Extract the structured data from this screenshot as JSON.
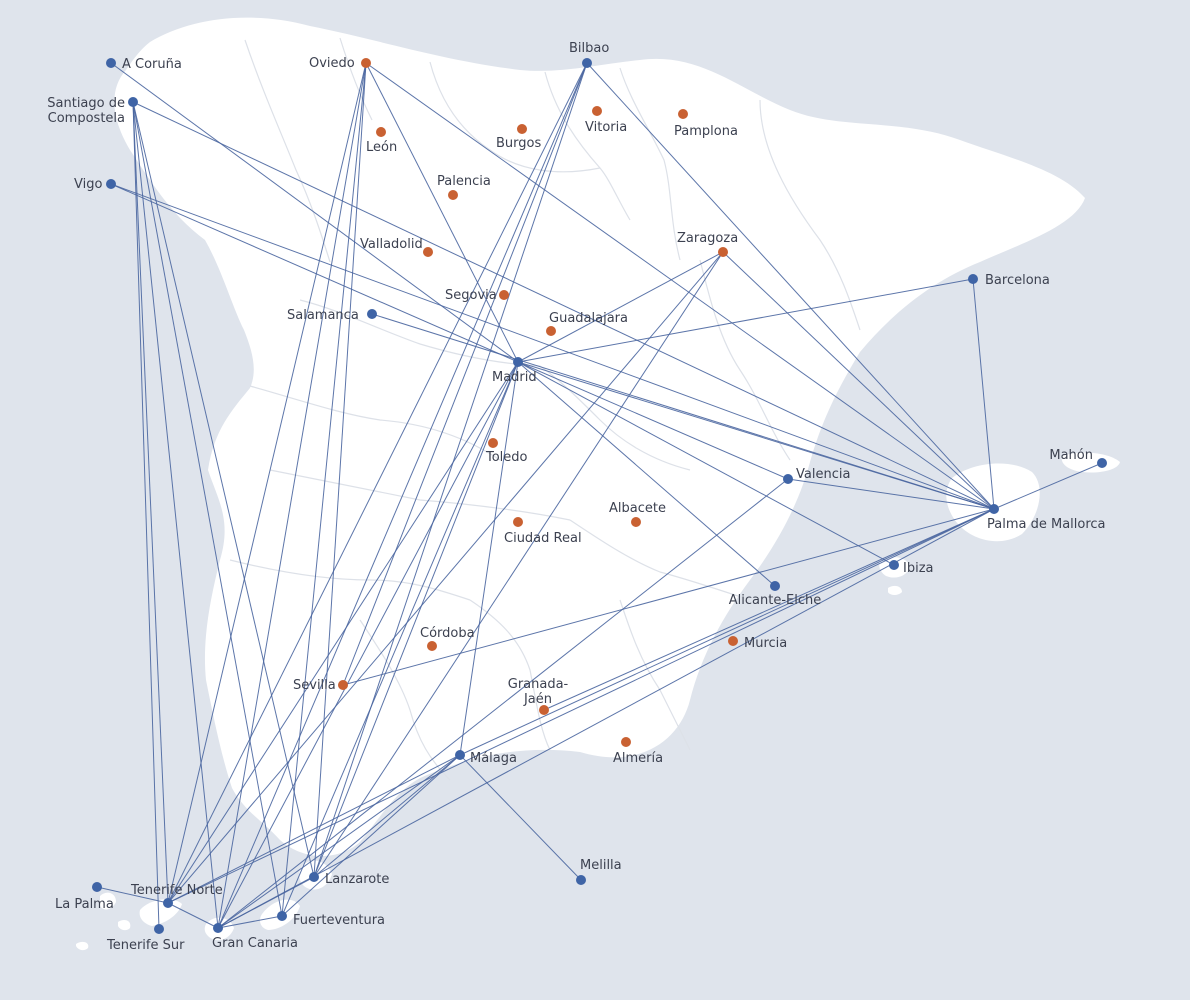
{
  "map": {
    "colors": {
      "sea": "#dfe4ec",
      "land": "#ffffff",
      "connected": "#3f64a6",
      "unconnected": "#c96132",
      "route": "#4a66a0",
      "label": "#3c4150",
      "border": "#dde1e8"
    },
    "cities": [
      {
        "id": "a-coruna",
        "name": "A Coruña",
        "type": "connected"
      },
      {
        "id": "santiago",
        "name": "Santiago de\nCompostela",
        "type": "connected"
      },
      {
        "id": "vigo",
        "name": "Vigo",
        "type": "connected"
      },
      {
        "id": "oviedo",
        "name": "Oviedo",
        "type": "unconnected"
      },
      {
        "id": "leon",
        "name": "León",
        "type": "unconnected"
      },
      {
        "id": "bilbao",
        "name": "Bilbao",
        "type": "connected"
      },
      {
        "id": "burgos",
        "name": "Burgos",
        "type": "unconnected"
      },
      {
        "id": "vitoria",
        "name": "Vitoria",
        "type": "unconnected"
      },
      {
        "id": "pamplona",
        "name": "Pamplona",
        "type": "unconnected"
      },
      {
        "id": "palencia",
        "name": "Palencia",
        "type": "unconnected"
      },
      {
        "id": "valladolid",
        "name": "Valladolid",
        "type": "unconnected"
      },
      {
        "id": "zaragoza",
        "name": "Zaragoza",
        "type": "unconnected"
      },
      {
        "id": "barcelona",
        "name": "Barcelona",
        "type": "connected"
      },
      {
        "id": "segovia",
        "name": "Segovia",
        "type": "unconnected"
      },
      {
        "id": "salamanca",
        "name": "Salamanca",
        "type": "connected"
      },
      {
        "id": "guadalajara",
        "name": "Guadalajara",
        "type": "unconnected"
      },
      {
        "id": "madrid",
        "name": "Madrid",
        "type": "connected"
      },
      {
        "id": "toledo",
        "name": "Toledo",
        "type": "unconnected"
      },
      {
        "id": "valencia",
        "name": "Valencia",
        "type": "connected"
      },
      {
        "id": "mahon",
        "name": "Mahón",
        "type": "connected"
      },
      {
        "id": "palma",
        "name": "Palma de Mallorca",
        "type": "connected"
      },
      {
        "id": "ciudad-real",
        "name": "Ciudad Real",
        "type": "unconnected"
      },
      {
        "id": "albacete",
        "name": "Albacete",
        "type": "unconnected"
      },
      {
        "id": "ibiza",
        "name": "Ibiza",
        "type": "connected"
      },
      {
        "id": "alicante",
        "name": "Alicante-Elche",
        "type": "connected"
      },
      {
        "id": "murcia",
        "name": "Murcia",
        "type": "unconnected"
      },
      {
        "id": "cordoba",
        "name": "Córdoba",
        "type": "unconnected"
      },
      {
        "id": "sevilla",
        "name": "Sevilla",
        "type": "unconnected"
      },
      {
        "id": "granada",
        "name": "Granada-\nJaén",
        "type": "unconnected"
      },
      {
        "id": "almeria",
        "name": "Almería",
        "type": "unconnected"
      },
      {
        "id": "malaga",
        "name": "Málaga",
        "type": "connected"
      },
      {
        "id": "melilla",
        "name": "Melilla",
        "type": "connected"
      },
      {
        "id": "lanzarote",
        "name": "Lanzarote",
        "type": "connected"
      },
      {
        "id": "tenerife-norte",
        "name": "Tenerife Norte",
        "type": "connected"
      },
      {
        "id": "la-palma",
        "name": "La Palma",
        "type": "connected"
      },
      {
        "id": "fuerteventura",
        "name": "Fuerteventura",
        "type": "connected"
      },
      {
        "id": "tenerife-sur",
        "name": "Tenerife Sur",
        "type": "connected"
      },
      {
        "id": "gran-canaria",
        "name": "Gran Canaria",
        "type": "connected"
      }
    ],
    "routes": [
      [
        "a-coruna",
        "madrid"
      ],
      [
        "santiago",
        "palma"
      ],
      [
        "santiago",
        "tenerife-norte"
      ],
      [
        "santiago",
        "gran-canaria"
      ],
      [
        "santiago",
        "lanzarote"
      ],
      [
        "santiago",
        "fuerteventura"
      ],
      [
        "santiago",
        "tenerife-sur"
      ],
      [
        "vigo",
        "madrid"
      ],
      [
        "vigo",
        "palma"
      ],
      [
        "oviedo",
        "madrid"
      ],
      [
        "oviedo",
        "palma"
      ],
      [
        "oviedo",
        "tenerife-norte"
      ],
      [
        "oviedo",
        "gran-canaria"
      ],
      [
        "oviedo",
        "lanzarote"
      ],
      [
        "oviedo",
        "fuerteventura"
      ],
      [
        "bilbao",
        "palma"
      ],
      [
        "bilbao",
        "tenerife-norte"
      ],
      [
        "bilbao",
        "gran-canaria"
      ],
      [
        "bilbao",
        "lanzarote"
      ],
      [
        "bilbao",
        "sevilla"
      ],
      [
        "zaragoza",
        "madrid"
      ],
      [
        "zaragoza",
        "tenerife-norte"
      ],
      [
        "zaragoza",
        "lanzarote"
      ],
      [
        "zaragoza",
        "palma"
      ],
      [
        "barcelona",
        "madrid"
      ],
      [
        "barcelona",
        "palma"
      ],
      [
        "salamanca",
        "palma"
      ],
      [
        "madrid",
        "palma"
      ],
      [
        "madrid",
        "valencia"
      ],
      [
        "madrid",
        "ibiza"
      ],
      [
        "madrid",
        "alicante"
      ],
      [
        "madrid",
        "malaga"
      ],
      [
        "madrid",
        "tenerife-norte"
      ],
      [
        "madrid",
        "gran-canaria"
      ],
      [
        "madrid",
        "lanzarote"
      ],
      [
        "madrid",
        "fuerteventura"
      ],
      [
        "valencia",
        "palma"
      ],
      [
        "valencia",
        "gran-canaria"
      ],
      [
        "mahon",
        "palma"
      ],
      [
        "palma",
        "sevilla"
      ],
      [
        "palma",
        "malaga"
      ],
      [
        "palma",
        "granada"
      ],
      [
        "palma",
        "tenerife-norte"
      ],
      [
        "palma",
        "gran-canaria"
      ],
      [
        "malaga",
        "melilla"
      ],
      [
        "malaga",
        "tenerife-norte"
      ],
      [
        "malaga",
        "gran-canaria"
      ],
      [
        "malaga",
        "lanzarote"
      ],
      [
        "malaga",
        "fuerteventura"
      ],
      [
        "tenerife-norte",
        "la-palma"
      ],
      [
        "tenerife-norte",
        "gran-canaria"
      ],
      [
        "gran-canaria",
        "fuerteventura"
      ],
      [
        "gran-canaria",
        "lanzarote"
      ]
    ]
  }
}
